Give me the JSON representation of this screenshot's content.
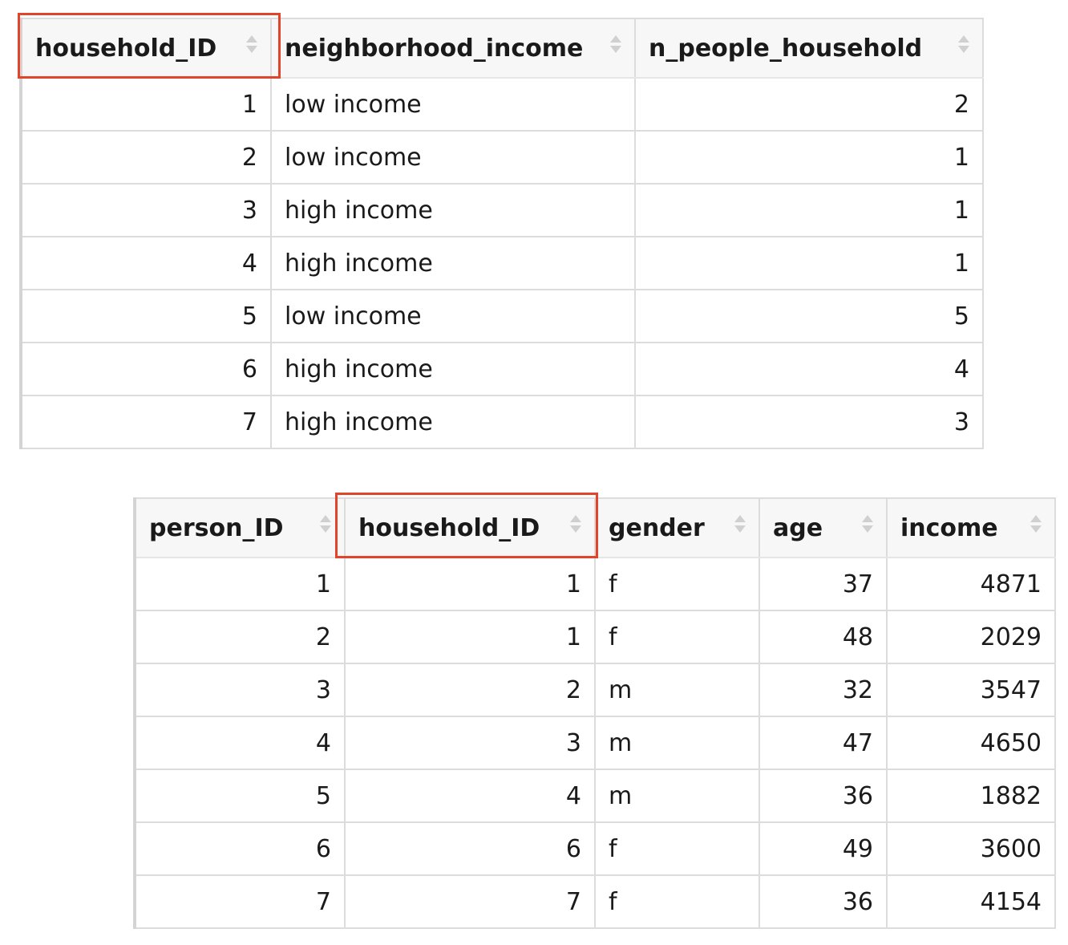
{
  "households_table": {
    "columns": [
      "household_ID",
      "neighborhood_income",
      "n_people_household"
    ],
    "rows": [
      [
        "1",
        "low income",
        "2"
      ],
      [
        "2",
        "low income",
        "1"
      ],
      [
        "3",
        "high income",
        "1"
      ],
      [
        "4",
        "high income",
        "1"
      ],
      [
        "5",
        "low income",
        "5"
      ],
      [
        "6",
        "high income",
        "4"
      ],
      [
        "7",
        "high income",
        "3"
      ]
    ],
    "highlighted_column": "household_ID"
  },
  "persons_table": {
    "columns": [
      "person_ID",
      "household_ID",
      "gender",
      "age",
      "income"
    ],
    "rows": [
      [
        "1",
        "1",
        "f",
        "37",
        "4871"
      ],
      [
        "2",
        "1",
        "f",
        "48",
        "2029"
      ],
      [
        "3",
        "2",
        "m",
        "32",
        "3547"
      ],
      [
        "4",
        "3",
        "m",
        "47",
        "4650"
      ],
      [
        "5",
        "4",
        "m",
        "36",
        "1882"
      ],
      [
        "6",
        "6",
        "f",
        "49",
        "3600"
      ],
      [
        "7",
        "7",
        "f",
        "36",
        "4154"
      ]
    ],
    "highlighted_column": "household_ID"
  },
  "colors": {
    "highlight": "#e0452c",
    "header_bg": "#f7f7f7",
    "border": "#dcdcdc"
  },
  "icons": {
    "sort": "sort-arrows-icon"
  }
}
